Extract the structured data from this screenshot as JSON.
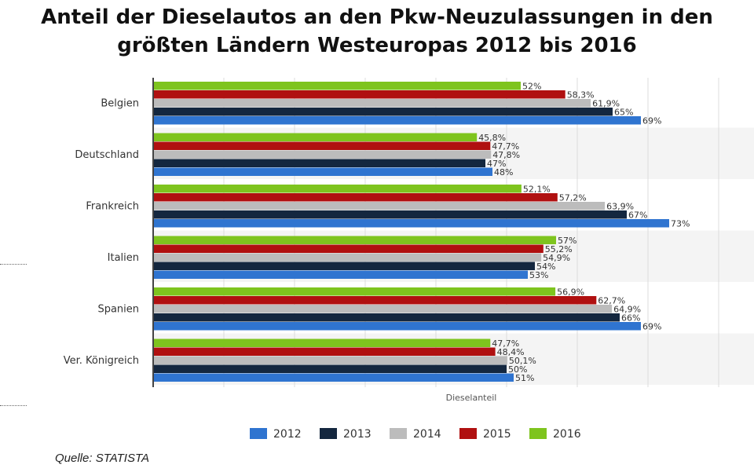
{
  "title_line1": "Anteil der Dieselautos an den Pkw-Neuzulassungen in den",
  "title_line2": "größten Ländern Westeuropas 2012 bis 2016",
  "source": "Quelle: STATISTA",
  "colors": {
    "2012": "#2f74d0",
    "2013": "#14273f",
    "2014": "#bcbcbc",
    "2015": "#b01010",
    "2016": "#7ec41e"
  },
  "chart_data": {
    "type": "bar",
    "orientation": "horizontal",
    "xlabel": "Dieselanteil",
    "xlim": [
      0,
      85
    ],
    "legend_position": "bottom",
    "categories": [
      "Belgien",
      "Deutschland",
      "Frankreich",
      "Italien",
      "Spanien",
      "Ver. Königreich"
    ],
    "series": [
      {
        "name": "2012",
        "values": [
          69,
          48,
          73,
          53,
          69,
          51
        ],
        "labels": [
          "69%",
          "48%",
          "73%",
          "53%",
          "69%",
          "51%"
        ]
      },
      {
        "name": "2013",
        "values": [
          65,
          47,
          67,
          54,
          66,
          50
        ],
        "labels": [
          "65%",
          "47%",
          "67%",
          "54%",
          "66%",
          "50%"
        ]
      },
      {
        "name": "2014",
        "values": [
          61.9,
          47.8,
          63.9,
          54.9,
          64.9,
          50.1
        ],
        "labels": [
          "61,9%",
          "47,8%",
          "63,9%",
          "54,9%",
          "64,9%",
          "50,1%"
        ]
      },
      {
        "name": "2015",
        "values": [
          58.3,
          47.7,
          57.2,
          55.2,
          62.7,
          48.4
        ],
        "labels": [
          "58,3%",
          "47,7%",
          "57,2%",
          "55,2%",
          "62,7%",
          "48,4%"
        ]
      },
      {
        "name": "2016",
        "values": [
          52,
          45.8,
          52.1,
          57,
          56.9,
          47.7
        ],
        "labels": [
          "52%",
          "45,8%",
          "52,1%",
          "57%",
          "56,9%",
          "47,7%"
        ]
      }
    ]
  }
}
